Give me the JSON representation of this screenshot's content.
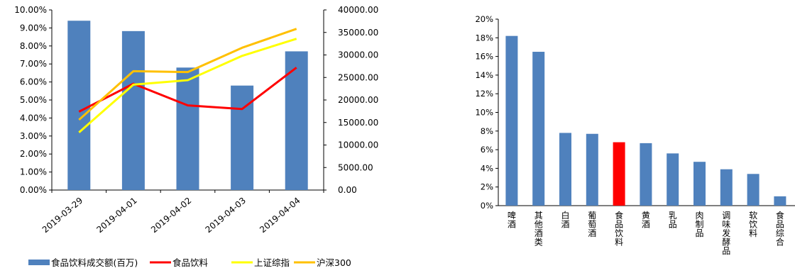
{
  "chart_data": [
    {
      "type": "bar+line",
      "categories": [
        "2019-03-29",
        "2019-04-01",
        "2019-04-02",
        "2019-04-03",
        "2019-04-04"
      ],
      "y_left": {
        "ylim": [
          0,
          10
        ],
        "ticks": [
          "0.00%",
          "1.00%",
          "2.00%",
          "3.00%",
          "4.00%",
          "5.00%",
          "6.00%",
          "7.00%",
          "8.00%",
          "9.00%",
          "10.00%"
        ]
      },
      "y_right": {
        "ylim": [
          0,
          40000
        ],
        "ticks": [
          "0.00",
          "5000.00",
          "10000.00",
          "15000.00",
          "20000.00",
          "25000.00",
          "30000.00",
          "35000.00",
          "40000.00"
        ]
      },
      "series": [
        {
          "name": "食品饮料成交额(百万)",
          "type": "bar",
          "axis": "right",
          "color": "#4F81BD",
          "values": [
            37600,
            35300,
            27200,
            23200,
            30800
          ]
        },
        {
          "name": "食品饮料",
          "type": "line",
          "axis": "left",
          "color": "#FF0000",
          "values": [
            4.35,
            5.9,
            4.7,
            4.5,
            6.8
          ]
        },
        {
          "name": "上证综指",
          "type": "line",
          "axis": "left",
          "color": "#FFFF00",
          "values": [
            3.2,
            5.85,
            6.1,
            7.45,
            8.4
          ]
        },
        {
          "name": "沪深300",
          "type": "line",
          "axis": "left",
          "color": "#FFC000",
          "values": [
            3.9,
            6.6,
            6.55,
            7.9,
            8.95
          ]
        }
      ],
      "legend": "bottom"
    },
    {
      "type": "bar",
      "categories": [
        "啤酒",
        "其他酒类",
        "白酒",
        "葡萄酒",
        "食品饮料",
        "黄酒",
        "乳品",
        "肉制品",
        "调味发酵品",
        "软饮料",
        "食品综合"
      ],
      "values": [
        18.2,
        16.5,
        7.8,
        7.7,
        6.8,
        6.7,
        5.6,
        4.7,
        3.9,
        3.4,
        1.0
      ],
      "highlight": "食品饮料",
      "colors": {
        "default": "#4F81BD",
        "highlight": "#FF0000"
      },
      "ylim": [
        0,
        20
      ],
      "yticks": [
        "0%",
        "2%",
        "4%",
        "6%",
        "8%",
        "10%",
        "12%",
        "14%",
        "16%",
        "18%",
        "20%"
      ]
    }
  ]
}
